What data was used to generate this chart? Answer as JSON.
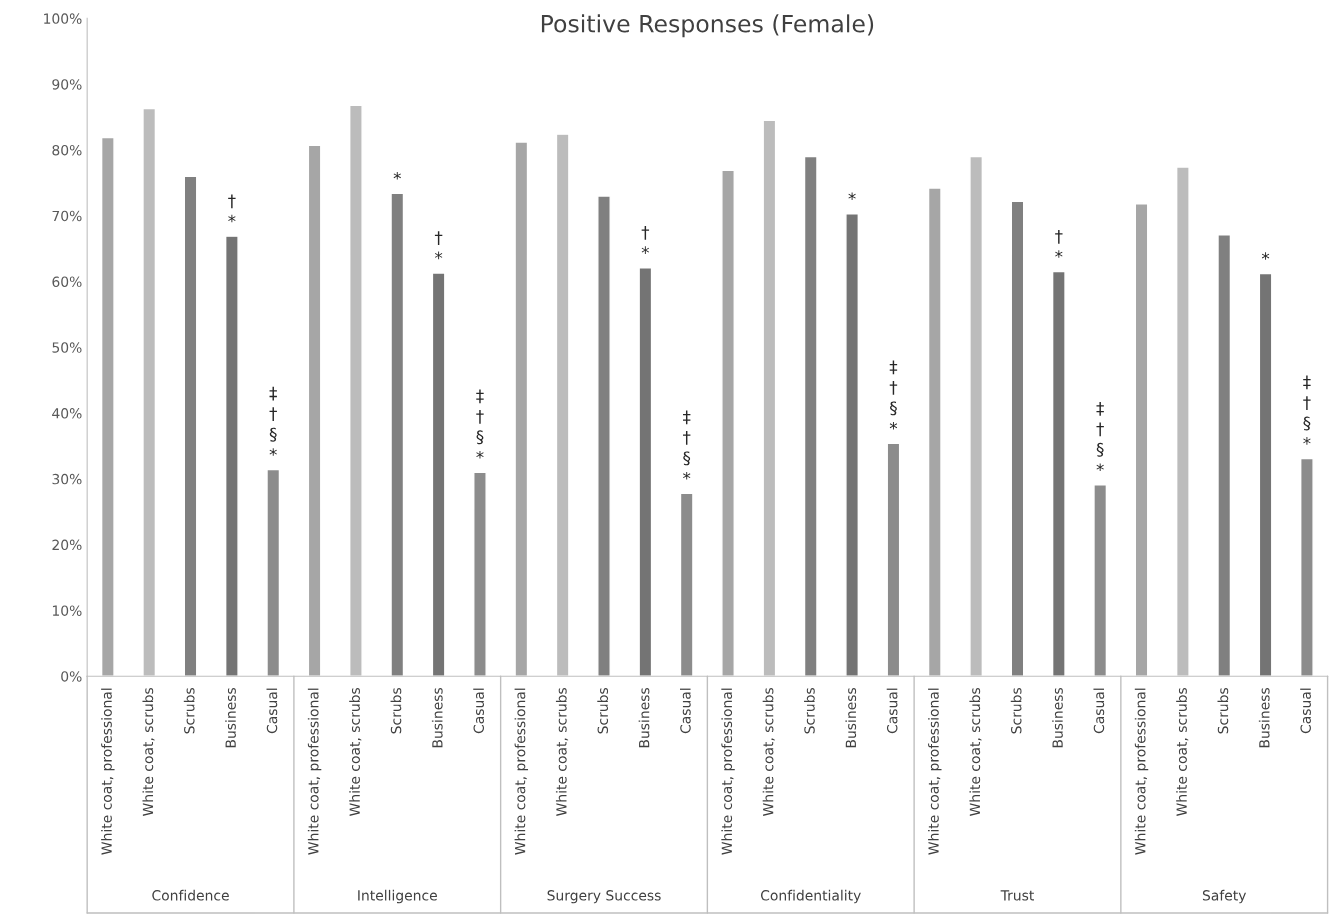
{
  "chart_data": {
    "type": "bar",
    "title": "Positive Responses (Female)",
    "categories": [
      "White coat, professional",
      "White coat, scrubs",
      "Scrubs",
      "Business",
      "Casual",
      "White coat, professional",
      "White coat, scrubs",
      "Scrubs",
      "Business",
      "Casual",
      "White coat, professional",
      "White coat, scrubs",
      "Scrubs",
      "Business",
      "Casual",
      "White coat, professional",
      "White coat, scrubs",
      "Scrubs",
      "Business",
      "Casual",
      "White coat, professional",
      "White coat, scrubs",
      "Scrubs",
      "Business",
      "Casual",
      "White coat, professional",
      "White coat, scrubs",
      "Scrubs",
      "Business",
      "Casual"
    ],
    "values": [
      81.9,
      86.3,
      76.0,
      66.9,
      31.4,
      80.7,
      86.8,
      73.4,
      61.3,
      31.0,
      81.2,
      82.4,
      73.0,
      62.1,
      27.8,
      76.9,
      84.5,
      79.0,
      70.3,
      35.4,
      74.2,
      79.0,
      72.2,
      61.5,
      29.1,
      71.8,
      77.4,
      67.1,
      61.2,
      33.1
    ],
    "colors": [
      "#a6a6a6",
      "#bcbcbc",
      "#808080",
      "#747474",
      "#8c8c8c",
      "#a6a6a6",
      "#bcbcbc",
      "#808080",
      "#747474",
      "#8c8c8c",
      "#a6a6a6",
      "#bcbcbc",
      "#808080",
      "#747474",
      "#8c8c8c",
      "#a6a6a6",
      "#bcbcbc",
      "#808080",
      "#747474",
      "#8c8c8c",
      "#a6a6a6",
      "#bcbcbc",
      "#808080",
      "#747474",
      "#8c8c8c",
      "#a6a6a6",
      "#bcbcbc",
      "#808080",
      "#747474",
      "#8c8c8c"
    ],
    "ylim": [
      0,
      100
    ],
    "yticks": [
      {
        "value": 0,
        "label": "0%"
      },
      {
        "value": 10,
        "label": "10%"
      },
      {
        "value": 20,
        "label": "20%"
      },
      {
        "value": 30,
        "label": "30%"
      },
      {
        "value": 40,
        "label": "40%"
      },
      {
        "value": 50,
        "label": "50%"
      },
      {
        "value": 60,
        "label": "60%"
      },
      {
        "value": 70,
        "label": "70%"
      },
      {
        "value": 80,
        "label": "80%"
      },
      {
        "value": 90,
        "label": "90%"
      },
      {
        "value": 100,
        "label": "100%"
      }
    ],
    "grid": false,
    "value_labels": [
      null,
      null,
      null,
      "†\n*",
      "‡\n†\n§\n*",
      null,
      null,
      "*",
      "†\n*",
      "‡\n†\n§\n*",
      null,
      null,
      null,
      "†\n*",
      "‡\n†\n§\n*",
      null,
      null,
      null,
      "*",
      "‡\n†\n§\n*",
      null,
      null,
      null,
      "†\n*",
      "‡\n†\n§\n*",
      null,
      null,
      null,
      "*",
      "‡\n†\n§\n*"
    ],
    "annotations": [
      "Confidence",
      "Intelligence",
      "Surgery Success",
      "Confidentiality",
      "Trust",
      "Safety"
    ]
  }
}
